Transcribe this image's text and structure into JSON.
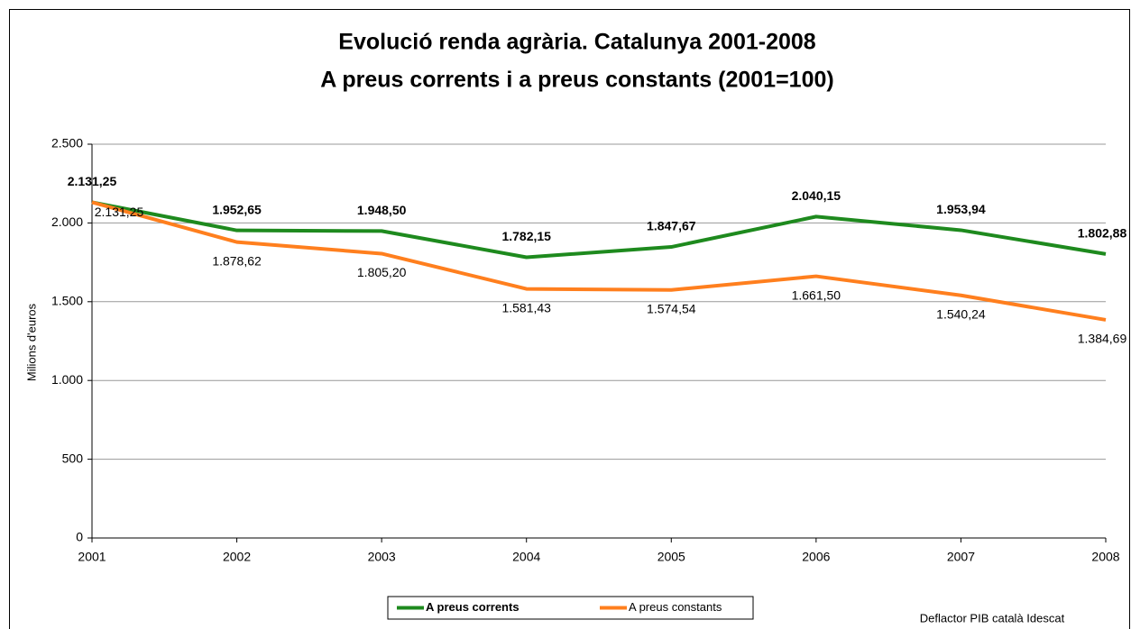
{
  "chart_data": {
    "type": "line",
    "title": "Evolució renda agrària. Catalunya 2001-2008",
    "subtitle": "A preus corrents i a preus constants (2001=100)",
    "y_label": "Milions d'euros",
    "annotation": "Deflactor PIB català Idescat",
    "categories": [
      "2001",
      "2002",
      "2003",
      "2004",
      "2005",
      "2006",
      "2007",
      "2008"
    ],
    "series": [
      {
        "name": "A preus corrents",
        "color": "#1e8a1e",
        "values": [
          2131.25,
          1952.65,
          1948.5,
          1782.15,
          1847.67,
          2040.15,
          1953.94,
          1802.88
        ],
        "value_labels": [
          "2.131,25",
          "1.952,65",
          "1.948,50",
          "1.782,15",
          "1.847,67",
          "2.040,15",
          "1.953,94",
          "1.802,88"
        ]
      },
      {
        "name": "A preus constants",
        "color": "#ff7f1e",
        "values": [
          2131.25,
          1878.62,
          1805.2,
          1581.43,
          1574.54,
          1661.5,
          1540.24,
          1384.69
        ],
        "value_labels": [
          "2.131,25",
          "1.878,62",
          "1.805,20",
          "1.581,43",
          "1.574,54",
          "1.661,50",
          "1.540,24",
          "1.384,69"
        ]
      }
    ],
    "ylim": [
      0,
      2500
    ],
    "yticks": [
      0,
      500,
      {
        "value": 1000,
        "label": "1.000"
      },
      {
        "value": 1500,
        "label": "1.500"
      },
      {
        "value": 2000,
        "label": "2.000"
      },
      {
        "value": 2500,
        "label": "2.500"
      }
    ],
    "grid": true,
    "legend": "bottom"
  }
}
